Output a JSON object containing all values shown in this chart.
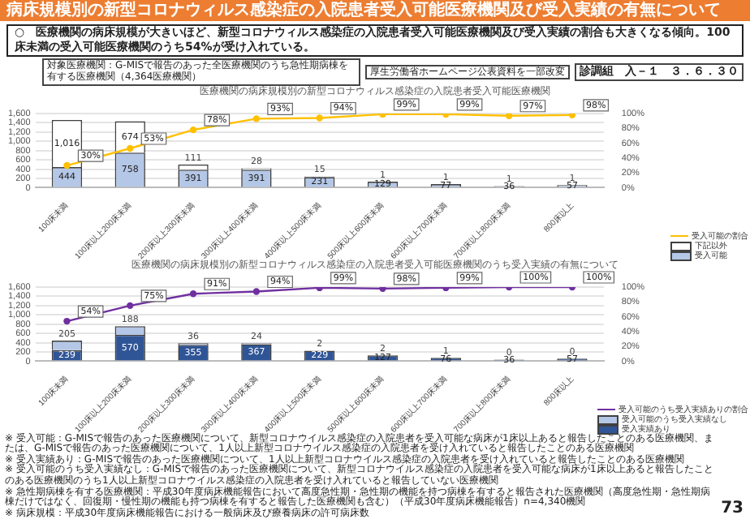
{
  "chart_data": [
    {
      "type": "other",
      "title": "病床規模別の新型コロナウィルス感染症の入院患者受入可能医療機関及び受入実績の有無について",
      "subtitle": "○　医療機関の病床規模が大きいほど、新型コロナウィルス感染症の入院患者受入可能医療機関及び受入実績の割合も大きくなる傾向。100床未満の受入可能医療機関のうち54%が受け入れている。",
      "annotations": [
        "対象医療機関：G-MISで報告のあった全医療機関のうち急性期病棟を有する医療機関（4,364医療機関）",
        "厚生労働省ホームページ公表資料を一部改変",
        "診調組　入－１　３．６．３０"
      ]
    },
    {
      "type": "bar",
      "stacked": true,
      "title": "医療機関の病床規模別の新型コロナウィルス感染症の入院患者受入可能医療機関",
      "categories": [
        "100床未満",
        "100床以上200床未満",
        "200床以上300床未満",
        "300床以上400床未満",
        "400床以上500床未満",
        "500床以上600床未満",
        "600床以上700床未満",
        "700床以上800床未満",
        "800床以上"
      ],
      "ylim": [
        0,
        1600
      ],
      "yticks": [
        0,
        200,
        400,
        600,
        800,
        {
          "value": 1000,
          "label": "1,000"
        },
        {
          "value": 1200,
          "label": "1,200"
        },
        {
          "value": 1400,
          "label": "1,400"
        },
        {
          "value": 1600,
          "label": "1,600"
        }
      ],
      "y2lim": [
        0,
        100
      ],
      "y2ticks": [
        {
          "value": 0,
          "label": "0%"
        },
        {
          "value": 20,
          "label": "20%"
        },
        {
          "value": 40,
          "label": "40%"
        },
        {
          "value": 60,
          "label": "60%"
        },
        {
          "value": 80,
          "label": "80%"
        },
        {
          "value": 100,
          "label": "100%"
        }
      ],
      "grid": "y",
      "legend": "bottom right",
      "marker": "circle",
      "series": [
        {
          "name": "受入可能",
          "color": "#b4c7e7",
          "values": [
            444,
            758,
            391,
            391,
            231,
            129,
            77,
            36,
            57
          ],
          "value_labels": [
            "444",
            "758",
            "391",
            "391",
            "231",
            "129",
            "77",
            "36",
            "57"
          ]
        },
        {
          "name": "下記以外",
          "color": "#ffffff",
          "values": [
            1016,
            674,
            111,
            28,
            15,
            1,
            1,
            1,
            1
          ],
          "value_labels": [
            "1,016",
            "674",
            "111",
            "28",
            "15",
            "1",
            "1",
            "1",
            "1"
          ]
        },
        {
          "name": "受入可能の割合",
          "type": "line",
          "axis": "y2",
          "color": "#ffc000",
          "values": [
            30,
            53,
            78,
            93,
            94,
            99,
            99,
            97,
            98
          ],
          "value_labels": [
            "30%",
            "53%",
            "78%",
            "93%",
            "94%",
            "99%",
            "99%",
            "97%",
            "98%"
          ]
        }
      ]
    },
    {
      "type": "bar",
      "stacked": true,
      "title": "医療機関の病床規模別の新型コロナウィルス感染症の入院患者受入可能医療機関のうち受入実績の有無について",
      "categories": [
        "100床未満",
        "100床以上200床未満",
        "200床以上300床未満",
        "300床以上400床未満",
        "400床以上500床未満",
        "500床以上600床未満",
        "600床以上700床未満",
        "700床以上800床未満",
        "800床以上"
      ],
      "ylim": [
        0,
        1600
      ],
      "yticks": [
        0,
        200,
        400,
        600,
        800,
        {
          "value": 1000,
          "label": "1,000"
        },
        {
          "value": 1200,
          "label": "1,200"
        },
        {
          "value": 1400,
          "label": "1,400"
        },
        {
          "value": 1600,
          "label": "1,600"
        }
      ],
      "y2lim": [
        0,
        100
      ],
      "y2ticks": [
        {
          "value": 0,
          "label": "0%"
        },
        {
          "value": 20,
          "label": "20%"
        },
        {
          "value": 40,
          "label": "40%"
        },
        {
          "value": 60,
          "label": "60%"
        },
        {
          "value": 80,
          "label": "80%"
        },
        {
          "value": 100,
          "label": "100%"
        }
      ],
      "grid": "y",
      "legend": "bottom right",
      "marker": "circle",
      "series": [
        {
          "name": "受入実績あり",
          "color": "#2f5597",
          "values": [
            239,
            570,
            355,
            367,
            229,
            127,
            76,
            36,
            57
          ],
          "value_labels": [
            "239",
            "570",
            "355",
            "367",
            "229",
            "127",
            "76",
            "36",
            "57"
          ]
        },
        {
          "name": "受入可能のうち受入実績なし",
          "color": "#b4c7e7",
          "values": [
            205,
            188,
            36,
            24,
            2,
            2,
            1,
            0,
            0
          ],
          "value_labels": [
            "205",
            "188",
            "36",
            "24",
            "2",
            "2",
            "1",
            "0",
            "0"
          ]
        },
        {
          "name": "受入可能のうち受入実績ありの割合",
          "type": "line",
          "axis": "y2",
          "color": "#7030a0",
          "values": [
            54,
            75,
            91,
            94,
            99,
            98,
            99,
            100,
            100
          ],
          "value_labels": [
            "54%",
            "75%",
            "91%",
            "94%",
            "99%",
            "98%",
            "99%",
            "100%",
            "100%"
          ]
        }
      ],
      "annotations": [
        "※ 受入可能：G-MISで報告のあった医療機関について、新型コロナウイルス感染症の入院患者を受入可能な病床が1床以上あると報告したことのある医療機関、または、G-MISで報告のあった医療機関について、1人以上新型コロナウイルス感染症の入院患者を受け入れていると報告したことのある医療機関",
        "※ 受入実績あり：G-MISで報告のあった医療機関について、1人以上新型コロナウイルス感染症の入院患者を受け入れていると報告したことのある医療機関",
        "※ 受入可能のうち受入実績なし：G-MISで報告のあった医療機関について、新型コロナウイルス感染症の入院患者を受入可能な病床が1床以上あると報告したことのある医療機関のうち1人以上新型コロナウイルス感染症の入院患者を受け入れていると報告していない医療機関",
        "※ 急性期病棟を有する医療機関：平成30年度病床機能報告において高度急性期・急性期の機能を持つ病棟を有すると報告された医療機関（高度急性期・急性期病棟だけではなく、回復期・慢性期の機能も持つ病棟を有すると報告した医療機関も含む）（平成30年度病床機能報告）n=4,340機関",
        "※ 病床規模：平成30年度病床機能報告における一般病床及び療養病床の許可病床数",
        "73"
      ]
    }
  ]
}
